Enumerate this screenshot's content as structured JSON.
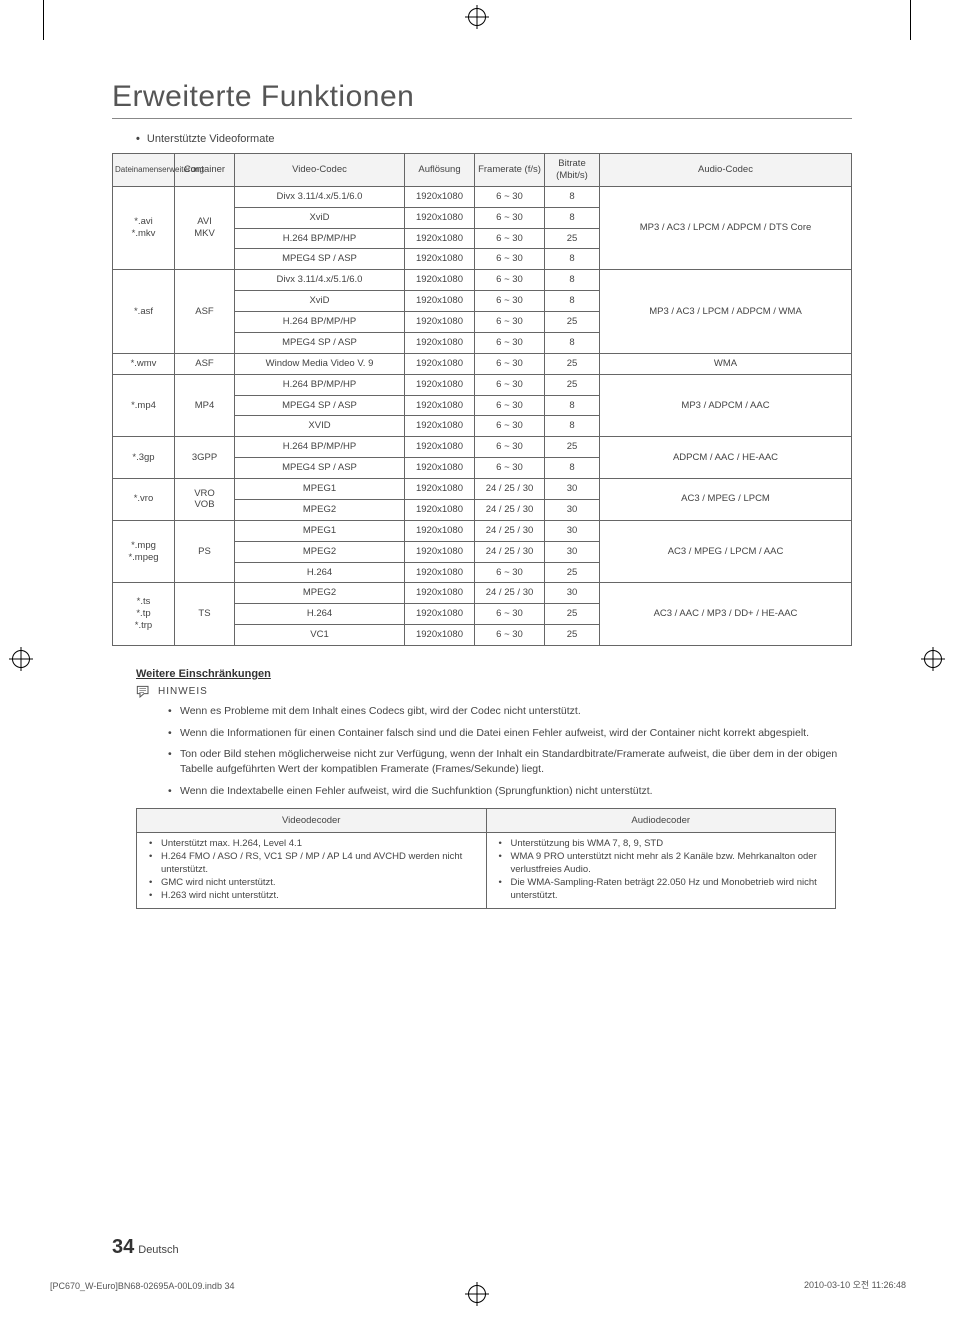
{
  "page": {
    "title": "Erweiterte Funktionen",
    "supported_formats_label": "Unterstützte Videoformate",
    "page_number": "34",
    "page_lang": "Deutsch"
  },
  "codec_table": {
    "headers": {
      "ext": "Dateinamenserweiterung",
      "container": "Container",
      "vcodec": "Video-Codec",
      "resolution": "Auflösung",
      "framerate": "Framerate (f/s)",
      "bitrate": "Bitrate (Mbit/s)",
      "acodec": "Audio-Codec"
    },
    "groups": [
      {
        "ext": "*.avi\n*.mkv",
        "container": "AVI\nMKV",
        "acodec": "MP3 / AC3 / LPCM / ADPCM / DTS Core",
        "rows": [
          {
            "vcodec": "Divx 3.11/4.x/5.1/6.0",
            "res": "1920x1080",
            "fr": "6 ~ 30",
            "br": "8"
          },
          {
            "vcodec": "XviD",
            "res": "1920x1080",
            "fr": "6 ~ 30",
            "br": "8"
          },
          {
            "vcodec": "H.264 BP/MP/HP",
            "res": "1920x1080",
            "fr": "6 ~ 30",
            "br": "25"
          },
          {
            "vcodec": "MPEG4 SP / ASP",
            "res": "1920x1080",
            "fr": "6 ~ 30",
            "br": "8"
          }
        ]
      },
      {
        "ext": "*.asf",
        "container": "ASF",
        "acodec": "MP3 / AC3 / LPCM / ADPCM / WMA",
        "rows": [
          {
            "vcodec": "Divx 3.11/4.x/5.1/6.0",
            "res": "1920x1080",
            "fr": "6 ~ 30",
            "br": "8"
          },
          {
            "vcodec": "XviD",
            "res": "1920x1080",
            "fr": "6 ~ 30",
            "br": "8"
          },
          {
            "vcodec": "H.264 BP/MP/HP",
            "res": "1920x1080",
            "fr": "6 ~ 30",
            "br": "25"
          },
          {
            "vcodec": "MPEG4 SP / ASP",
            "res": "1920x1080",
            "fr": "6 ~ 30",
            "br": "8"
          }
        ]
      },
      {
        "ext": "*.wmv",
        "container": "ASF",
        "acodec": "WMA",
        "rows": [
          {
            "vcodec": "Window Media Video V. 9",
            "res": "1920x1080",
            "fr": "6 ~ 30",
            "br": "25"
          }
        ]
      },
      {
        "ext": "*.mp4",
        "container": "MP4",
        "acodec": "MP3 / ADPCM / AAC",
        "rows": [
          {
            "vcodec": "H.264 BP/MP/HP",
            "res": "1920x1080",
            "fr": "6 ~ 30",
            "br": "25"
          },
          {
            "vcodec": "MPEG4 SP / ASP",
            "res": "1920x1080",
            "fr": "6 ~ 30",
            "br": "8"
          },
          {
            "vcodec": "XVID",
            "res": "1920x1080",
            "fr": "6 ~ 30",
            "br": "8"
          }
        ]
      },
      {
        "ext": "*.3gp",
        "container": "3GPP",
        "acodec": "ADPCM / AAC / HE-AAC",
        "rows": [
          {
            "vcodec": "H.264 BP/MP/HP",
            "res": "1920x1080",
            "fr": "6 ~ 30",
            "br": "25"
          },
          {
            "vcodec": "MPEG4 SP / ASP",
            "res": "1920x1080",
            "fr": "6 ~ 30",
            "br": "8"
          }
        ]
      },
      {
        "ext": "*.vro",
        "container": "VRO\nVOB",
        "acodec": "AC3 / MPEG / LPCM",
        "rows": [
          {
            "vcodec": "MPEG1",
            "res": "1920x1080",
            "fr": "24 / 25 / 30",
            "br": "30"
          },
          {
            "vcodec": "MPEG2",
            "res": "1920x1080",
            "fr": "24 / 25 / 30",
            "br": "30"
          }
        ]
      },
      {
        "ext": "*.mpg\n*.mpeg",
        "container": "PS",
        "acodec": "AC3 / MPEG / LPCM / AAC",
        "rows": [
          {
            "vcodec": "MPEG1",
            "res": "1920x1080",
            "fr": "24 / 25 / 30",
            "br": "30"
          },
          {
            "vcodec": "MPEG2",
            "res": "1920x1080",
            "fr": "24 / 25 / 30",
            "br": "30"
          },
          {
            "vcodec": "H.264",
            "res": "1920x1080",
            "fr": "6 ~ 30",
            "br": "25"
          }
        ]
      },
      {
        "ext": "*.ts\n*.tp\n*.trp",
        "container": "TS",
        "acodec": "AC3 / AAC / MP3 / DD+ / HE-AAC",
        "rows": [
          {
            "vcodec": "MPEG2",
            "res": "1920x1080",
            "fr": "24 / 25 / 30",
            "br": "30"
          },
          {
            "vcodec": "H.264",
            "res": "1920x1080",
            "fr": "6 ~ 30",
            "br": "25"
          },
          {
            "vcodec": "VC1",
            "res": "1920x1080",
            "fr": "6 ~ 30",
            "br": "25"
          }
        ]
      }
    ]
  },
  "restrictions": {
    "heading": "Weitere Einschränkungen",
    "hinweis_label": "HINWEIS",
    "notes": [
      "Wenn es Probleme mit dem Inhalt eines Codecs gibt, wird der Codec nicht unterstützt.",
      "Wenn die Informationen für einen Container falsch sind und die Datei einen Fehler aufweist, wird der Container nicht korrekt abgespielt.",
      "Ton oder Bild stehen möglicherweise nicht zur Verfügung, wenn der Inhalt ein Standardbitrate/Framerate aufweist, die über dem in der obigen Tabelle aufgeführten Wert der kompatiblen Framerate (Frames/Sekunde) liegt.",
      "Wenn die Indextabelle einen Fehler aufweist, wird die Suchfunktion (Sprungfunktion) nicht unterstützt."
    ]
  },
  "decoder_table": {
    "headers": {
      "video": "Videodecoder",
      "audio": "Audiodecoder"
    },
    "video_items": [
      "Unterstützt max. H.264, Level 4.1",
      "H.264 FMO / ASO / RS, VC1 SP / MP / AP L4 und AVCHD werden nicht unterstützt.",
      "GMC wird nicht unterstützt.",
      "H.263 wird nicht unterstützt."
    ],
    "audio_items": [
      "Unterstützung bis WMA 7, 8, 9, STD",
      "WMA 9 PRO unterstützt nicht mehr als 2 Kanäle bzw. Mehrkanalton oder verlustfreies Audio.",
      "Die WMA-Sampling-Raten beträgt 22.050 Hz und Monobetrieb wird nicht unterstützt."
    ]
  },
  "footer": {
    "left": "[PC670_W-Euro]BN68-02695A-00L09.indb   34",
    "right": "2010-03-10   오전 11:26:48"
  }
}
